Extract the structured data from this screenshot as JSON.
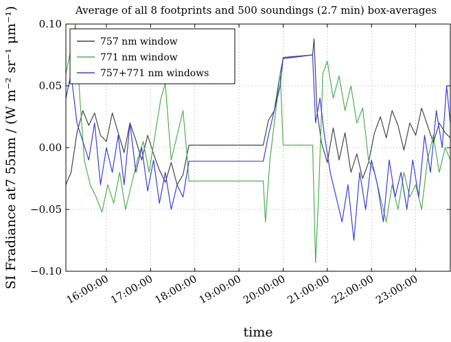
{
  "chart_data": {
    "type": "line",
    "title": "Average of all 8 footprints and 500 soundings (2.7 min) box-averages",
    "xlabel": "time",
    "ylabel": "SI Fradiance at7 55nm / (W m⁻² sr⁻¹ μm⁻¹)",
    "xlim": [
      "15:05:00",
      "23:47:00"
    ],
    "ylim": [
      -0.1,
      0.1
    ],
    "x_ticks": [
      "16:00:00",
      "17:00:00",
      "18:00:00",
      "19:00:00",
      "20:00:00",
      "21:00:00",
      "22:00:00",
      "23:00:00"
    ],
    "y_ticks": [
      "−0.10",
      "−0.05",
      "0.00",
      "0.05",
      "0.10"
    ],
    "y_tick_values": [
      -0.1,
      -0.05,
      0.0,
      0.05,
      0.1
    ],
    "grid": true,
    "legend_position": "top-left",
    "series": [
      {
        "name": "757 nm window",
        "color": "#444444",
        "points": [
          [
            "15:05:00",
            -0.03
          ],
          [
            "15:12:00",
            -0.02
          ],
          [
            "15:20:00",
            0.012
          ],
          [
            "15:28:00",
            0.03
          ],
          [
            "15:36:00",
            0.018
          ],
          [
            "15:44:00",
            0.028
          ],
          [
            "15:52:00",
            0.01
          ],
          [
            "16:00:00",
            0.005
          ],
          [
            "16:08:00",
            0.028
          ],
          [
            "16:16:00",
            0.012
          ],
          [
            "16:24:00",
            -0.004
          ],
          [
            "16:32:00",
            0.02
          ],
          [
            "16:40:00",
            0.006
          ],
          [
            "16:48:00",
            -0.01
          ],
          [
            "16:56:00",
            0.01
          ],
          [
            "17:04:00",
            -0.005
          ],
          [
            "17:12:00",
            -0.018
          ],
          [
            "17:20:00",
            -0.028
          ],
          [
            "17:28:00",
            -0.012
          ],
          [
            "17:36:00",
            -0.03
          ],
          [
            "17:44:00",
            -0.022
          ],
          [
            "17:52:00",
            0.002
          ],
          [
            "19:33:00",
            0.002
          ],
          [
            "19:40:00",
            0.022
          ],
          [
            "19:48:00",
            0.03
          ],
          [
            "19:56:00",
            0.06
          ],
          [
            "20:00:00",
            0.072
          ],
          [
            "20:40:00",
            0.075
          ],
          [
            "20:42:00",
            0.088
          ],
          [
            "20:46:00",
            0.03
          ],
          [
            "20:52:00",
            0.004
          ],
          [
            "21:00:00",
            -0.012
          ],
          [
            "21:08:00",
            0.016
          ],
          [
            "21:16:00",
            -0.01
          ],
          [
            "21:24:00",
            0.012
          ],
          [
            "21:32:00",
            -0.02
          ],
          [
            "21:40:00",
            -0.005
          ],
          [
            "21:48:00",
            -0.025
          ],
          [
            "21:56:00",
            -0.012
          ],
          [
            "22:04:00",
            0.012
          ],
          [
            "22:12:00",
            0.025
          ],
          [
            "22:20:00",
            0.008
          ],
          [
            "22:28:00",
            0.03
          ],
          [
            "22:36:00",
            0.018
          ],
          [
            "22:44:00",
            -0.002
          ],
          [
            "22:52:00",
            0.02
          ],
          [
            "23:00:00",
            0.01
          ],
          [
            "23:08:00",
            0.032
          ],
          [
            "23:16:00",
            0.018
          ],
          [
            "23:24:00",
            0.004
          ],
          [
            "23:32:00",
            0.02
          ],
          [
            "23:40:00",
            0.012
          ],
          [
            "23:47:00",
            0.008
          ]
        ]
      },
      {
        "name": "771 nm window",
        "color": "#4caf50",
        "points": [
          [
            "15:05:00",
            0.06
          ],
          [
            "15:12:00",
            0.08
          ],
          [
            "15:18:00",
            0.1
          ],
          [
            "15:24:00",
            0.04
          ],
          [
            "15:30:00",
            -0.01
          ],
          [
            "15:38:00",
            -0.03
          ],
          [
            "15:46:00",
            -0.04
          ],
          [
            "15:54:00",
            -0.052
          ],
          [
            "16:02:00",
            -0.03
          ],
          [
            "16:10:00",
            -0.045
          ],
          [
            "16:18:00",
            -0.02
          ],
          [
            "16:26:00",
            -0.05
          ],
          [
            "16:34:00",
            -0.03
          ],
          [
            "16:42:00",
            -0.01
          ],
          [
            "16:50:00",
            0.005
          ],
          [
            "16:58:00",
            -0.02
          ],
          [
            "17:06:00",
            0.01
          ],
          [
            "17:14:00",
            0.04
          ],
          [
            "17:20:00",
            0.052
          ],
          [
            "17:28:00",
            -0.01
          ],
          [
            "17:36:00",
            0.01
          ],
          [
            "17:44:00",
            0.03
          ],
          [
            "17:50:00",
            -0.01
          ],
          [
            "17:52:00",
            -0.027
          ],
          [
            "19:33:00",
            -0.027
          ],
          [
            "19:36:00",
            -0.06
          ],
          [
            "19:42:00",
            -0.01
          ],
          [
            "19:48:00",
            0.02
          ],
          [
            "19:56:00",
            0.06
          ],
          [
            "20:00:00",
            0.002
          ],
          [
            "20:40:00",
            0.002
          ],
          [
            "20:44:00",
            -0.093
          ],
          [
            "20:48:00",
            -0.04
          ],
          [
            "20:54:00",
            0.06
          ],
          [
            "21:00:00",
            0.07
          ],
          [
            "21:08:00",
            0.04
          ],
          [
            "21:16:00",
            0.058
          ],
          [
            "21:24:00",
            0.03
          ],
          [
            "21:32:00",
            0.05
          ],
          [
            "21:40:00",
            0.02
          ],
          [
            "21:48:00",
            0.032
          ],
          [
            "21:56:00",
            -0.01
          ],
          [
            "22:04:00",
            -0.02
          ],
          [
            "22:12:00",
            -0.04
          ],
          [
            "22:20:00",
            -0.06
          ],
          [
            "22:28:00",
            -0.03
          ],
          [
            "22:36:00",
            -0.05
          ],
          [
            "22:44:00",
            -0.02
          ],
          [
            "22:52:00",
            -0.04
          ],
          [
            "23:00:00",
            -0.03
          ],
          [
            "23:08:00",
            -0.05
          ],
          [
            "23:16:00",
            -0.01
          ],
          [
            "23:24:00",
            0.01
          ],
          [
            "23:32:00",
            -0.02
          ],
          [
            "23:40:00",
            0.0
          ],
          [
            "23:47:00",
            -0.01
          ]
        ]
      },
      {
        "name": "757+771 nm windows",
        "color": "#3b3bdb",
        "points": [
          [
            "15:05:00",
            0.04
          ],
          [
            "15:12:00",
            0.06
          ],
          [
            "15:20:00",
            0.02
          ],
          [
            "15:28:00",
            0.005
          ],
          [
            "15:36:00",
            -0.01
          ],
          [
            "15:44:00",
            0.02
          ],
          [
            "15:52:00",
            -0.03
          ],
          [
            "16:00:00",
            0.0
          ],
          [
            "16:08:00",
            -0.02
          ],
          [
            "16:16:00",
            0.01
          ],
          [
            "16:24:00",
            -0.03
          ],
          [
            "16:32:00",
            0.02
          ],
          [
            "16:40:00",
            -0.02
          ],
          [
            "16:48:00",
            0.0
          ],
          [
            "16:56:00",
            -0.035
          ],
          [
            "17:04:00",
            -0.01
          ],
          [
            "17:12:00",
            -0.045
          ],
          [
            "17:20:00",
            -0.02
          ],
          [
            "17:28:00",
            -0.05
          ],
          [
            "17:36:00",
            -0.03
          ],
          [
            "17:44:00",
            -0.04
          ],
          [
            "17:52:00",
            -0.011
          ],
          [
            "19:33:00",
            -0.011
          ],
          [
            "19:40:00",
            0.01
          ],
          [
            "19:48:00",
            0.03
          ],
          [
            "19:56:00",
            0.05
          ],
          [
            "20:00:00",
            0.073
          ],
          [
            "20:40:00",
            0.075
          ],
          [
            "20:44:00",
            0.02
          ],
          [
            "20:50:00",
            0.04
          ],
          [
            "20:56:00",
            0.01
          ],
          [
            "21:04:00",
            -0.02
          ],
          [
            "21:12:00",
            -0.04
          ],
          [
            "21:20:00",
            -0.06
          ],
          [
            "21:28:00",
            -0.03
          ],
          [
            "21:36:00",
            -0.075
          ],
          [
            "21:44:00",
            -0.02
          ],
          [
            "21:52:00",
            -0.05
          ],
          [
            "22:00:00",
            -0.01
          ],
          [
            "22:08:00",
            -0.03
          ],
          [
            "22:16:00",
            -0.06
          ],
          [
            "22:24:00",
            -0.01
          ],
          [
            "22:32:00",
            -0.04
          ],
          [
            "22:40:00",
            -0.02
          ],
          [
            "22:48:00",
            -0.05
          ],
          [
            "22:56:00",
            -0.01
          ],
          [
            "23:04:00",
            -0.04
          ],
          [
            "23:12:00",
            0.01
          ],
          [
            "23:20:00",
            -0.02
          ],
          [
            "23:28:00",
            0.03
          ],
          [
            "23:36:00",
            0.0
          ],
          [
            "23:42:00",
            0.05
          ],
          [
            "23:47:00",
            0.02
          ]
        ]
      }
    ]
  }
}
